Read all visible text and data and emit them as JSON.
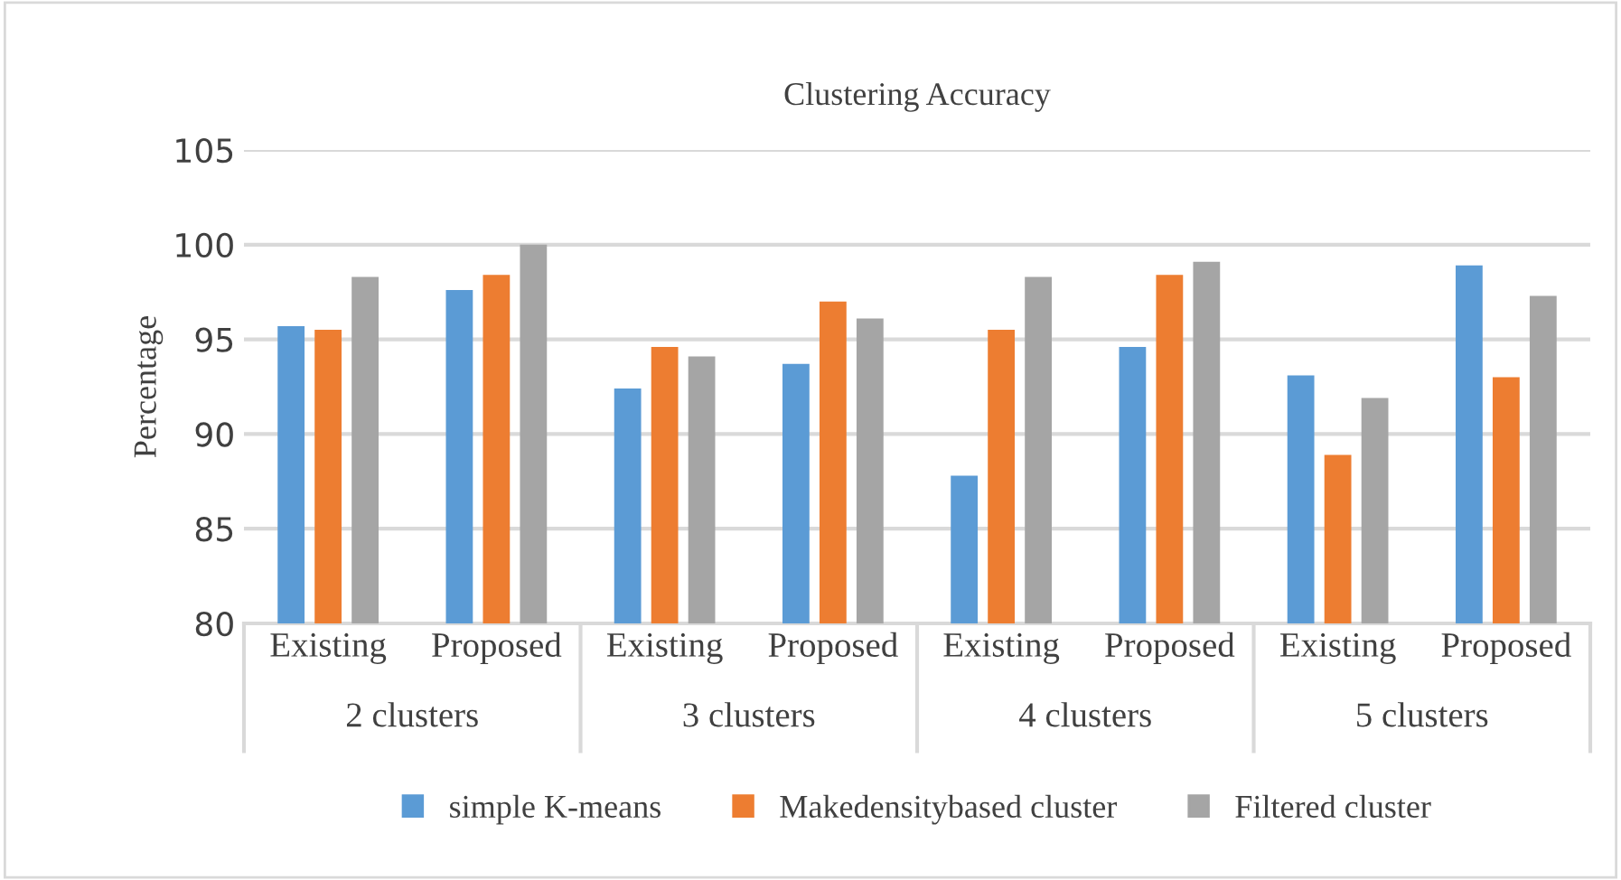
{
  "chart_data": {
    "type": "bar",
    "title": "Clustering Accuracy",
    "ylabel": "Percentage",
    "categories": [
      "Existing",
      "Proposed",
      "Existing",
      "Proposed",
      "Existing",
      "Proposed",
      "Existing",
      "Proposed"
    ],
    "annotations": [
      "2 clusters",
      "3 clusters",
      "4 clusters",
      "5 clusters"
    ],
    "series": [
      {
        "name": "simple K-means",
        "color": "#5b9bd5",
        "values": [
          95.7,
          97.6,
          92.4,
          93.7,
          87.8,
          94.6,
          93.1,
          98.9
        ]
      },
      {
        "name": "Makedensitybased cluster",
        "color": "#ed7d31",
        "values": [
          95.5,
          98.4,
          94.6,
          97.0,
          95.5,
          98.4,
          88.9,
          93.0
        ]
      },
      {
        "name": "Filtered cluster",
        "color": "#a5a5a5",
        "values": [
          98.3,
          100,
          94.1,
          96.1,
          98.3,
          99.1,
          91.9,
          97.3
        ]
      }
    ],
    "ylim": [
      80,
      105
    ],
    "yticks": [
      80,
      85,
      90,
      95,
      100,
      105
    ],
    "grid": "y",
    "legend": "bottom"
  }
}
